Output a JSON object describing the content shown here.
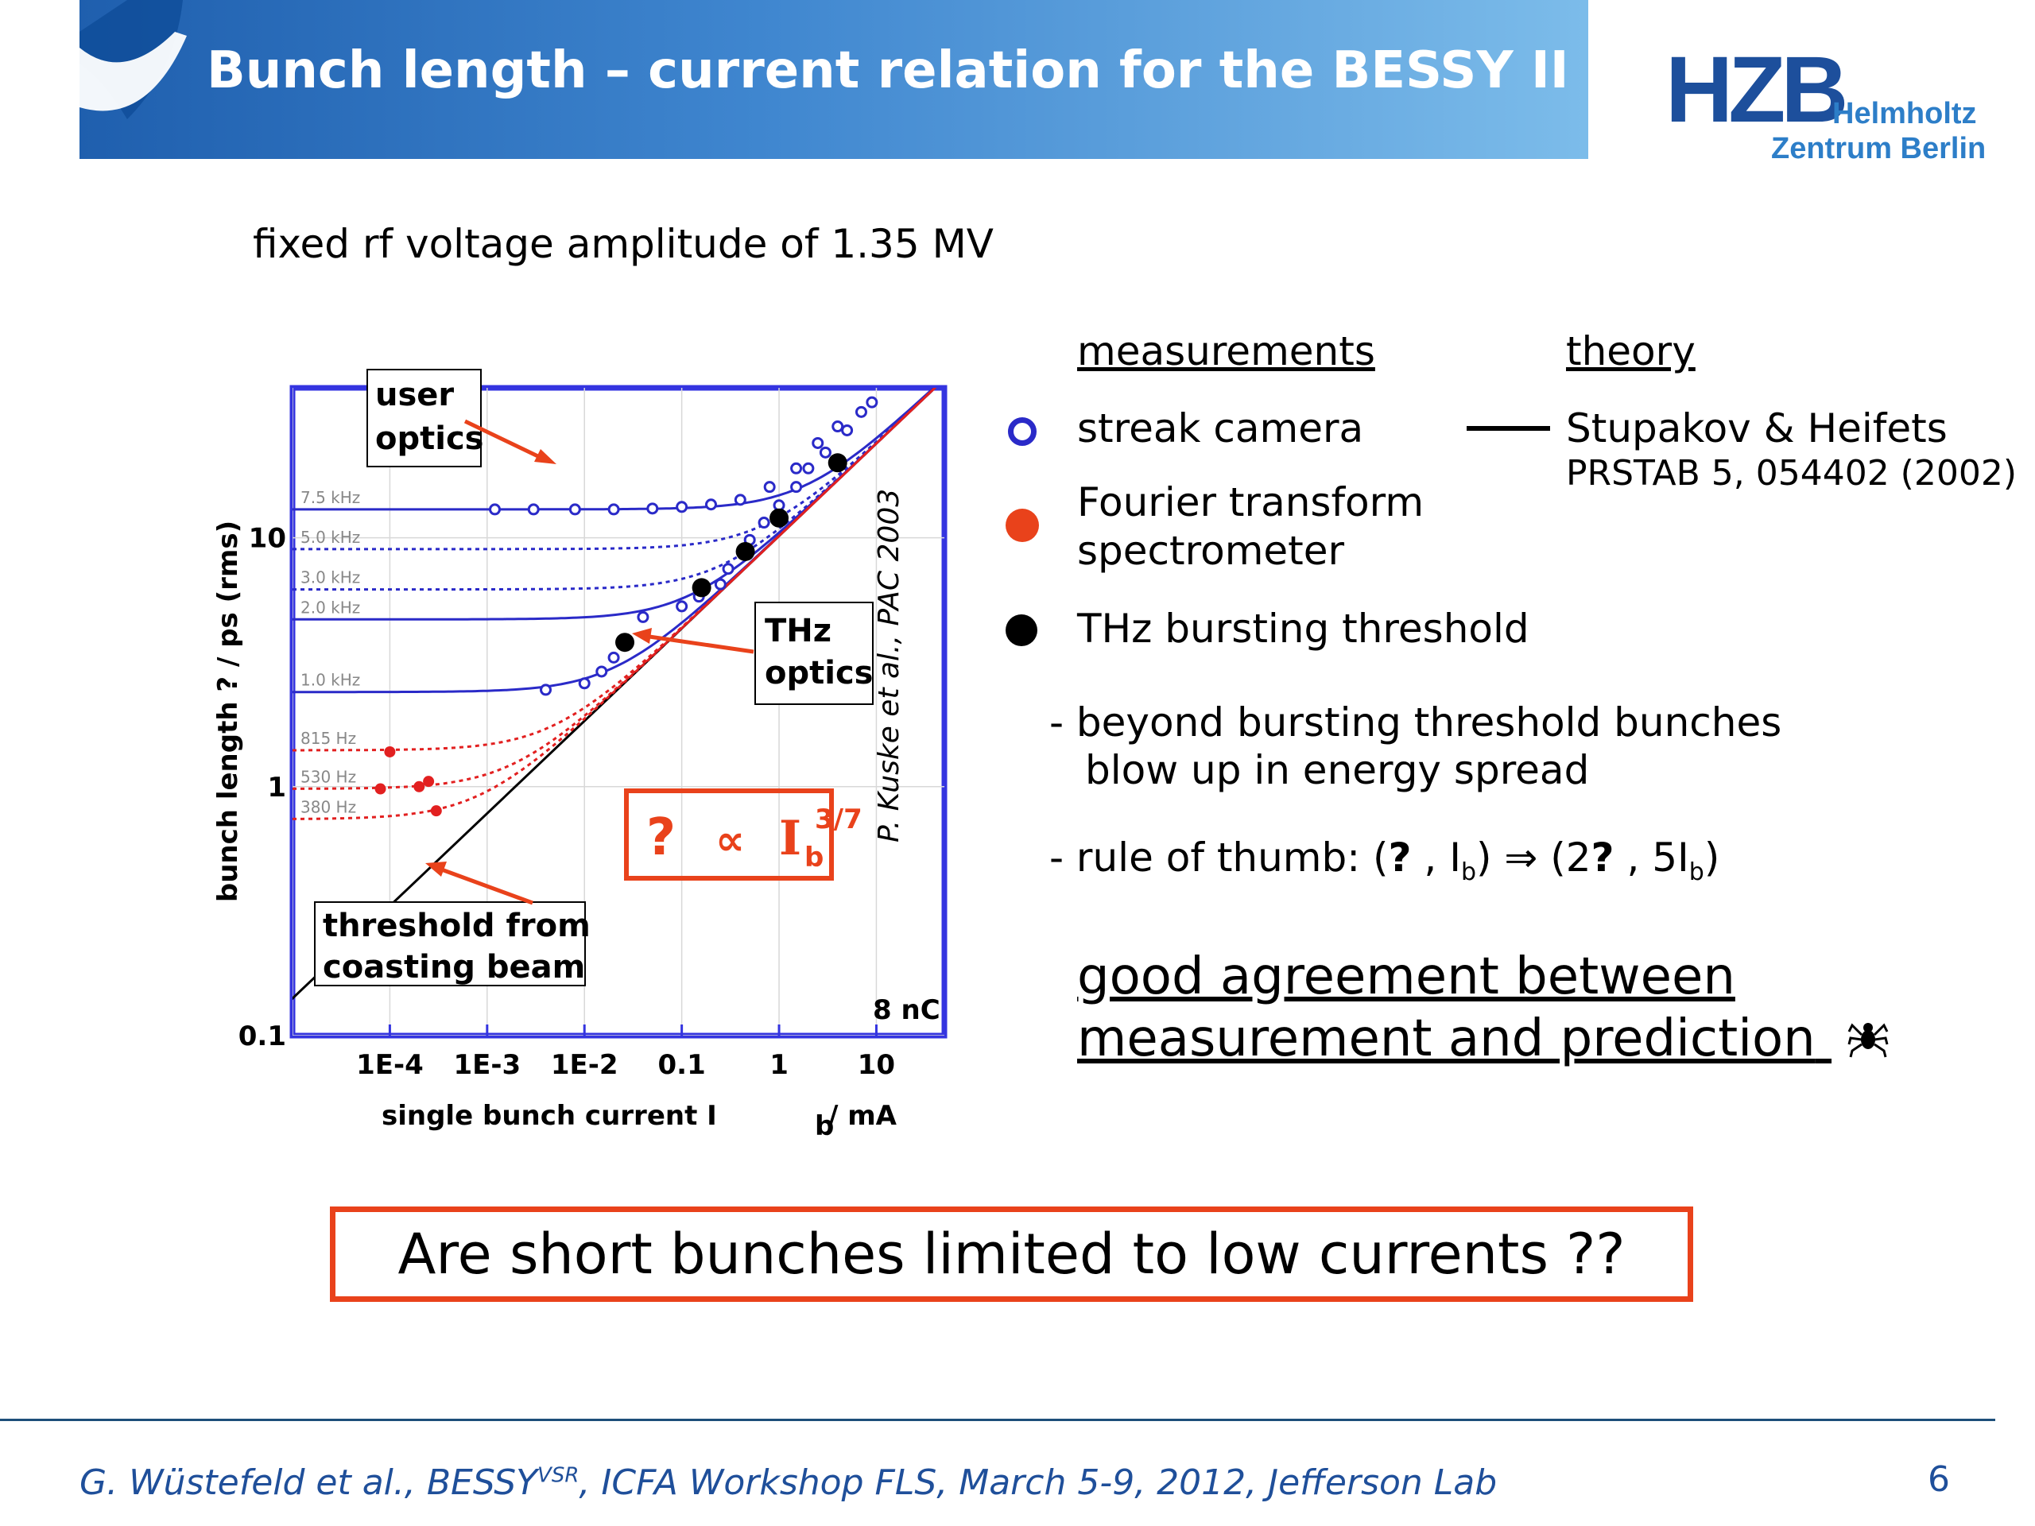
{
  "header": {
    "title": "Bunch length – current relation for the BESSY II ring",
    "logo": {
      "mark": "HZB",
      "line1": "Helmholtz",
      "line2": "Zentrum Berlin"
    },
    "banner_color": "#3f86cf"
  },
  "subtitle": "fixed rf voltage amplitude of 1.35 MV",
  "chart_data": {
    "type": "scatter",
    "xlabel": "single bunch current I",
    "xlabel_sub": "b",
    "xlabel_unit": "/ mA",
    "ylabel": "bunch length  ?  / ps (rms)",
    "x_scale": "log",
    "y_scale": "log",
    "xlim": [
      1e-05,
      50
    ],
    "ylim": [
      0.1,
      40
    ],
    "x_ticks": [
      "1E-4",
      "1E-3",
      "1E-2",
      "0.1",
      "1",
      "10"
    ],
    "y_ticks": [
      "0.1",
      "1",
      "10"
    ],
    "rf_curves": [
      {
        "label": "7.5 kHz",
        "plateau": 13,
        "color": "#2a2ac8",
        "style": "solid"
      },
      {
        "label": "5.0 kHz",
        "plateau": 9,
        "color": "#2a2ac8",
        "style": "dotted"
      },
      {
        "label": "3.0 kHz",
        "plateau": 6.2,
        "color": "#2a2ac8",
        "style": "dotted"
      },
      {
        "label": "2.0 kHz",
        "plateau": 4.7,
        "color": "#2a2ac8",
        "style": "solid"
      },
      {
        "label": "1.0 kHz",
        "plateau": 2.4,
        "color": "#2a2ac8",
        "style": "solid"
      },
      {
        "label": "815 Hz",
        "plateau": 1.4,
        "color": "#e22020",
        "style": "dotted"
      },
      {
        "label": "530 Hz",
        "plateau": 0.98,
        "color": "#e22020",
        "style": "dotted"
      },
      {
        "label": "380 Hz",
        "plateau": 0.74,
        "color": "#e22020",
        "style": "dotted"
      }
    ],
    "streak_camera": [
      [
        0.0012,
        13
      ],
      [
        0.003,
        13
      ],
      [
        0.008,
        13
      ],
      [
        0.02,
        13
      ],
      [
        0.05,
        13.1
      ],
      [
        0.1,
        13.3
      ],
      [
        0.2,
        13.6
      ],
      [
        0.4,
        14.2
      ],
      [
        0.8,
        16
      ],
      [
        1.5,
        19
      ],
      [
        2.5,
        24
      ],
      [
        4,
        28
      ],
      [
        0.04,
        4.8
      ],
      [
        0.1,
        5.3
      ],
      [
        0.15,
        5.8
      ],
      [
        0.25,
        6.5
      ],
      [
        0.004,
        2.45
      ],
      [
        0.01,
        2.6
      ],
      [
        0.015,
        2.9
      ],
      [
        0.02,
        3.3
      ],
      [
        0.3,
        7.5
      ],
      [
        0.5,
        9.8
      ],
      [
        0.7,
        11.5
      ],
      [
        1,
        13.5
      ],
      [
        1.5,
        16
      ],
      [
        2,
        19
      ],
      [
        3,
        22
      ],
      [
        5,
        27
      ],
      [
        7,
        32
      ],
      [
        9,
        35
      ]
    ],
    "fts": [
      [
        0.0001,
        1.38
      ],
      [
        8e-05,
        0.98
      ],
      [
        0.0002,
        1.0
      ],
      [
        0.00025,
        1.05
      ],
      [
        0.0003,
        0.8
      ]
    ],
    "thz_threshold": [
      [
        0.026,
        3.8
      ],
      [
        0.16,
        6.3
      ],
      [
        0.45,
        8.8
      ],
      [
        1,
        12
      ],
      [
        4,
        20
      ]
    ],
    "theory_line": [
      [
        1e-06,
        0.06
      ],
      [
        40,
        40
      ]
    ],
    "annotations": {
      "user_optics": [
        "user",
        "optics"
      ],
      "thz_optics": [
        "THz",
        "optics"
      ],
      "threshold": [
        "threshold from",
        "coasting beam"
      ],
      "charge": "8 nC",
      "citation": "P. Kuske et al., PAC 2003",
      "scaling": {
        "q": "?",
        "prop": "∝",
        "base": "I",
        "sub": "b",
        "exp": "3/7"
      }
    }
  },
  "legend": {
    "measurements_head": "measurements",
    "theory_head": "theory",
    "streak": "streak camera",
    "fts_line1": "Fourier transform",
    "fts_line2": "spectrometer",
    "thz": "THz bursting threshold",
    "theory_name": "Stupakov & Heifets",
    "theory_ref": "PRSTAB 5, 054402 (2002)",
    "streak_color": "#2a2ac8",
    "fts_color": "#e9421b",
    "thz_color": "#000000"
  },
  "notes": {
    "beyond_line1": "- beyond bursting threshold bunches",
    "beyond_line2": "blow up in energy spread",
    "rule_prefix": "- rule of thumb:  (",
    "rule_q1": "?",
    "rule_mid1": " , I",
    "rule_sub1": "b",
    "rule_mid2": ") ",
    "rule_arrow": "⇒",
    "rule_mid3": " (2",
    "rule_q2": "?",
    "rule_mid4": " , 5I",
    "rule_sub2": "b",
    "rule_end": ")"
  },
  "conclusion": {
    "line1": "good agreement between",
    "line2": "measurement and prediction",
    "icon": "spider-icon"
  },
  "question": "Are short bunches limited to low currents ??",
  "footer": {
    "text_before_sup": "G. Wüstefeld et al., BESSY",
    "sup": "VSR",
    "text_after_sup": ", ICFA Workshop FLS, March 5-9, 2012, Jefferson Lab",
    "page": "6"
  }
}
